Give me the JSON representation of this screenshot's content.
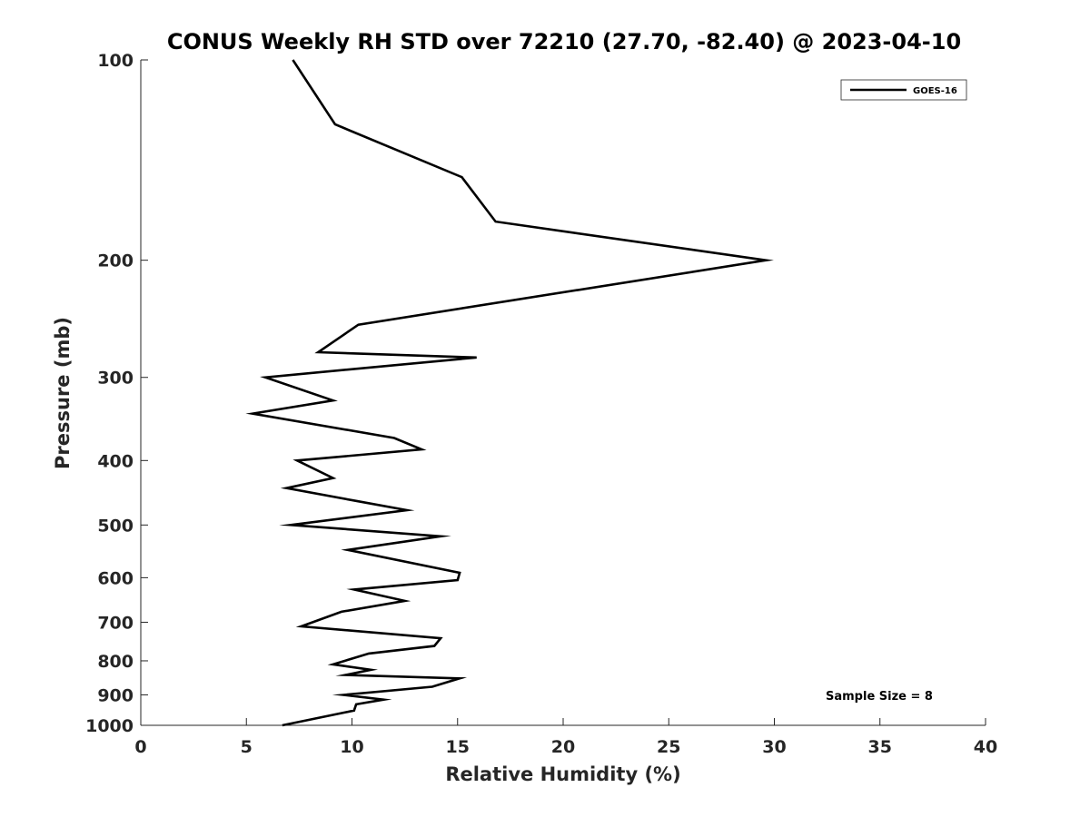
{
  "chart_data": {
    "type": "line",
    "title": "CONUS Weekly RH STD over 72210 (27.70, -82.40) @ 2023-04-10",
    "xlabel": "Relative Humidity (%)",
    "ylabel": "Pressure (mb)",
    "xlim": [
      0,
      40
    ],
    "ylim": [
      1000,
      100
    ],
    "yscale": "log",
    "y_reversed": true,
    "grid": false,
    "legend_position": "top-right",
    "x_ticks": [
      0,
      5,
      10,
      15,
      20,
      25,
      30,
      35,
      40
    ],
    "y_ticks": [
      100,
      200,
      300,
      400,
      500,
      600,
      700,
      800,
      900,
      1000
    ],
    "annotation": "Sample Size = 8",
    "series": [
      {
        "name": "GOES-16",
        "color": "#000000",
        "points": [
          {
            "rh": 7.2,
            "p": 100
          },
          {
            "rh": 9.2,
            "p": 125
          },
          {
            "rh": 15.2,
            "p": 150
          },
          {
            "rh": 16.8,
            "p": 175
          },
          {
            "rh": 29.6,
            "p": 200
          },
          {
            "rh": 10.3,
            "p": 250
          },
          {
            "rh": 8.4,
            "p": 275
          },
          {
            "rh": 15.9,
            "p": 280
          },
          {
            "rh": 5.9,
            "p": 300
          },
          {
            "rh": 9.1,
            "p": 325
          },
          {
            "rh": 5.3,
            "p": 340
          },
          {
            "rh": 12.0,
            "p": 370
          },
          {
            "rh": 13.3,
            "p": 385
          },
          {
            "rh": 7.4,
            "p": 400
          },
          {
            "rh": 9.1,
            "p": 425
          },
          {
            "rh": 6.9,
            "p": 440
          },
          {
            "rh": 10.2,
            "p": 460
          },
          {
            "rh": 12.6,
            "p": 475
          },
          {
            "rh": 7.1,
            "p": 500
          },
          {
            "rh": 14.2,
            "p": 520
          },
          {
            "rh": 9.8,
            "p": 545
          },
          {
            "rh": 15.1,
            "p": 590
          },
          {
            "rh": 15.0,
            "p": 605
          },
          {
            "rh": 10.1,
            "p": 625
          },
          {
            "rh": 12.5,
            "p": 650
          },
          {
            "rh": 9.5,
            "p": 675
          },
          {
            "rh": 7.6,
            "p": 710
          },
          {
            "rh": 14.2,
            "p": 740
          },
          {
            "rh": 13.9,
            "p": 760
          },
          {
            "rh": 10.8,
            "p": 780
          },
          {
            "rh": 9.1,
            "p": 810
          },
          {
            "rh": 10.9,
            "p": 825
          },
          {
            "rh": 9.7,
            "p": 840
          },
          {
            "rh": 15.1,
            "p": 850
          },
          {
            "rh": 13.8,
            "p": 875
          },
          {
            "rh": 9.6,
            "p": 900
          },
          {
            "rh": 11.5,
            "p": 915
          },
          {
            "rh": 10.2,
            "p": 930
          },
          {
            "rh": 10.1,
            "p": 950
          },
          {
            "rh": 6.7,
            "p": 1000
          }
        ]
      }
    ]
  }
}
